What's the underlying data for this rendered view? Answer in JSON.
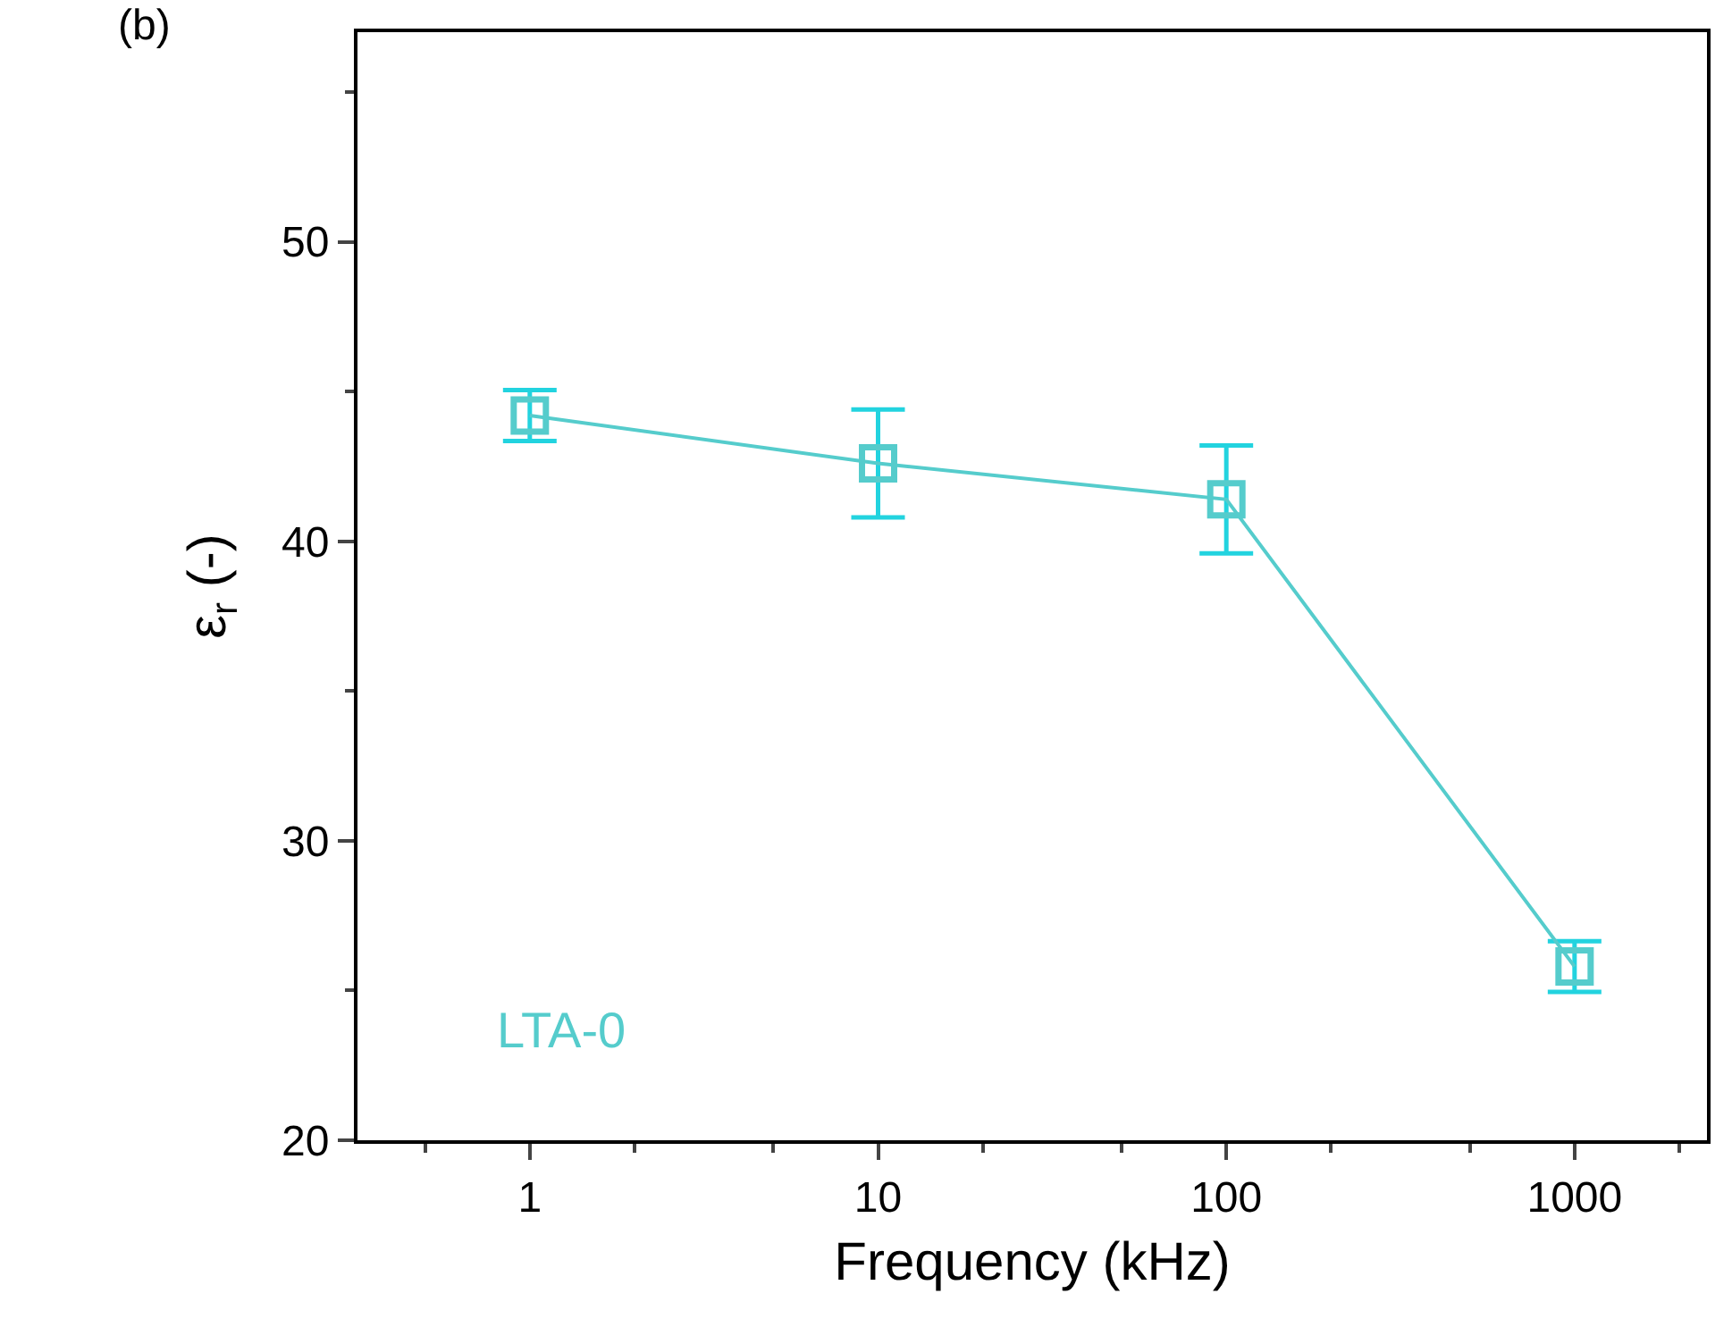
{
  "chart_data": {
    "type": "line",
    "xlabel": "Frequency (kHz)",
    "ylabel": "ε$_{r}$ (-)",
    "annotations": [
      "(b)"
    ],
    "x": [
      1,
      10,
      100,
      1000
    ],
    "series": [
      {
        "name": "LTA-0",
        "color": "#55cccc",
        "values": [
          44.2,
          42.6,
          41.4,
          25.8
        ],
        "errors": [
          0.85,
          1.8,
          1.8,
          0.85
        ]
      }
    ],
    "log": "x",
    "xlim": [
      0.32,
      2400
    ],
    "xticks": [
      1,
      10,
      100,
      1000
    ],
    "ylim": [
      20,
      57
    ],
    "yticks": [
      20,
      30,
      40,
      50
    ],
    "grid": false,
    "legend": false,
    "marker": "square",
    "line_style": "solid"
  }
}
